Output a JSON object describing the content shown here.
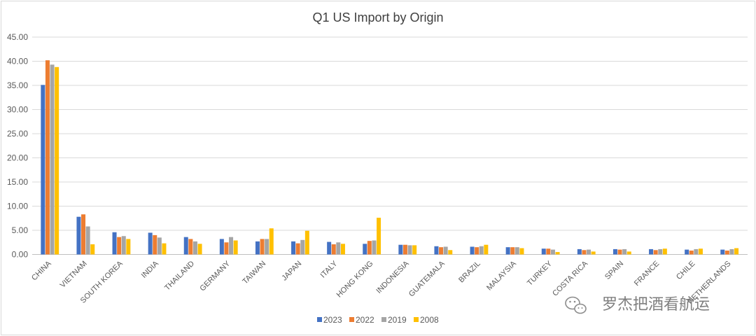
{
  "chart_data": {
    "type": "bar",
    "title": "Q1 US Import by Origin",
    "xlabel": "",
    "ylabel": "",
    "ylim": [
      0,
      45
    ],
    "yticks": [
      "0.00",
      "5.00",
      "10.00",
      "15.00",
      "20.00",
      "25.00",
      "30.00",
      "35.00",
      "40.00",
      "45.00"
    ],
    "grid": true,
    "legend_position": "bottom",
    "categories": [
      "CHINA",
      "VIETNAM",
      "SOUTH KOREA",
      "INDIA",
      "THAILAND",
      "GERMANY",
      "TAIWAN",
      "JAPAN",
      "ITALY",
      "HONG KONG",
      "INDONESIA",
      "GUATEMALA",
      "BRAZIL",
      "MALAYSIA",
      "TURKEY",
      "COSTA RICA",
      "SPAIN",
      "FRANCE",
      "CHILE",
      "NETHERLANDS"
    ],
    "series": [
      {
        "name": "2023",
        "color": "#4472c4",
        "values": [
          35.1,
          7.8,
          4.6,
          4.5,
          3.6,
          3.2,
          2.7,
          2.7,
          2.6,
          2.2,
          2.0,
          1.7,
          1.6,
          1.5,
          1.2,
          1.1,
          1.1,
          1.1,
          1.0,
          1.0
        ]
      },
      {
        "name": "2022",
        "color": "#ed7d31",
        "values": [
          40.2,
          8.3,
          3.6,
          4.0,
          3.2,
          2.5,
          3.2,
          2.3,
          2.1,
          2.8,
          2.0,
          1.5,
          1.5,
          1.5,
          1.2,
          0.9,
          1.0,
          0.9,
          0.8,
          0.8
        ]
      },
      {
        "name": "2019",
        "color": "#a5a5a5",
        "values": [
          39.3,
          5.8,
          3.8,
          3.5,
          2.7,
          3.6,
          3.2,
          3.0,
          2.5,
          2.9,
          1.9,
          1.6,
          1.7,
          1.5,
          1.0,
          1.0,
          1.1,
          1.1,
          1.1,
          1.1
        ]
      },
      {
        "name": "2008",
        "color": "#ffc000",
        "values": [
          38.8,
          2.1,
          3.2,
          2.3,
          2.2,
          2.9,
          5.4,
          4.9,
          2.2,
          7.6,
          1.9,
          0.9,
          2.0,
          1.3,
          0.5,
          0.6,
          0.6,
          1.2,
          1.2,
          1.3
        ]
      }
    ]
  },
  "watermark": {
    "text": "罗杰把酒看航运",
    "icon": "wechat-icon"
  }
}
